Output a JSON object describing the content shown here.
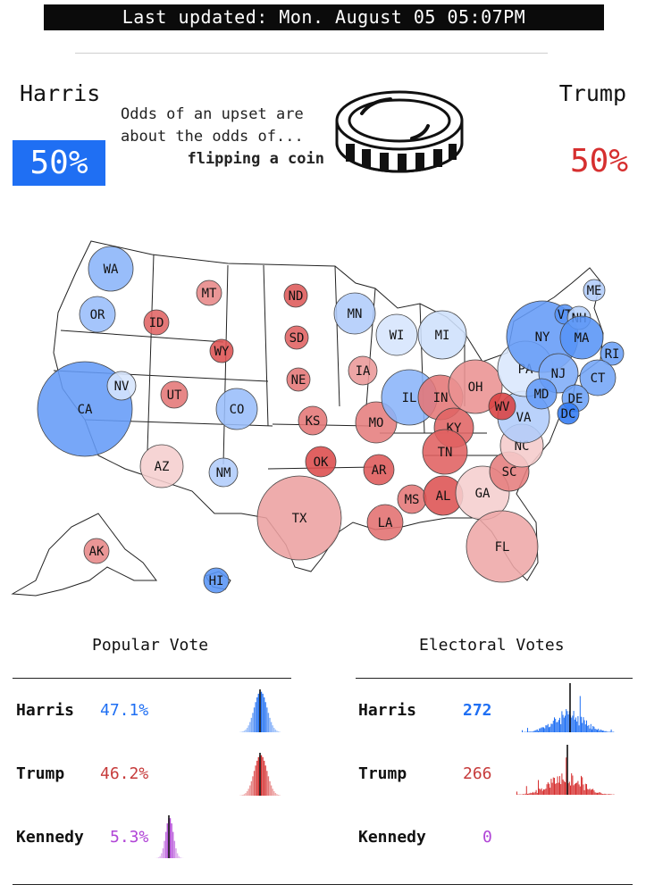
{
  "header": {
    "last_updated": "Last updated: Mon. August 05 05:07PM"
  },
  "topline": {
    "harris_label": "Harris",
    "trump_label": "Trump",
    "harris_pct": "50%",
    "trump_pct": "50%",
    "odds_line1": "Odds of an upset are",
    "odds_line2": "about the odds of...",
    "odds_line3": "flipping a coin",
    "icon": "coin-icon"
  },
  "colors": {
    "harris": "#1f6ff3",
    "trump": "#d62f2f",
    "kennedy": "#b044d6"
  },
  "states": [
    {
      "abbr": "WA",
      "lean": "D",
      "p": 0.72
    },
    {
      "abbr": "OR",
      "lean": "D",
      "p": 0.68
    },
    {
      "abbr": "CA",
      "lean": "D",
      "p": 0.82
    },
    {
      "abbr": "NV",
      "lean": "D",
      "p": 0.52
    },
    {
      "abbr": "ID",
      "lean": "R",
      "p": 0.85
    },
    {
      "abbr": "MT",
      "lean": "R",
      "p": 0.75
    },
    {
      "abbr": "WY",
      "lean": "R",
      "p": 0.9
    },
    {
      "abbr": "UT",
      "lean": "R",
      "p": 0.8
    },
    {
      "abbr": "AZ",
      "lean": "R",
      "p": 0.55
    },
    {
      "abbr": "CO",
      "lean": "D",
      "p": 0.68
    },
    {
      "abbr": "NM",
      "lean": "D",
      "p": 0.62
    },
    {
      "abbr": "ND",
      "lean": "R",
      "p": 0.88
    },
    {
      "abbr": "SD",
      "lean": "R",
      "p": 0.86
    },
    {
      "abbr": "NE",
      "lean": "R",
      "p": 0.8
    },
    {
      "abbr": "KS",
      "lean": "R",
      "p": 0.8
    },
    {
      "abbr": "OK",
      "lean": "R",
      "p": 0.92
    },
    {
      "abbr": "TX",
      "lean": "R",
      "p": 0.68
    },
    {
      "abbr": "MN",
      "lean": "D",
      "p": 0.62
    },
    {
      "abbr": "IA",
      "lean": "R",
      "p": 0.7
    },
    {
      "abbr": "MO",
      "lean": "R",
      "p": 0.78
    },
    {
      "abbr": "AR",
      "lean": "R",
      "p": 0.88
    },
    {
      "abbr": "LA",
      "lean": "R",
      "p": 0.82
    },
    {
      "abbr": "WI",
      "lean": "D",
      "p": 0.52
    },
    {
      "abbr": "MI",
      "lean": "D",
      "p": 0.54
    },
    {
      "abbr": "IL",
      "lean": "D",
      "p": 0.72
    },
    {
      "abbr": "IN",
      "lean": "R",
      "p": 0.8
    },
    {
      "abbr": "OH",
      "lean": "R",
      "p": 0.72
    },
    {
      "abbr": "KY",
      "lean": "R",
      "p": 0.85
    },
    {
      "abbr": "TN",
      "lean": "R",
      "p": 0.86
    },
    {
      "abbr": "MS",
      "lean": "R",
      "p": 0.8
    },
    {
      "abbr": "AL",
      "lean": "R",
      "p": 0.9
    },
    {
      "abbr": "GA",
      "lean": "R",
      "p": 0.55
    },
    {
      "abbr": "FL",
      "lean": "R",
      "p": 0.66
    },
    {
      "abbr": "SC",
      "lean": "R",
      "p": 0.78
    },
    {
      "abbr": "NC",
      "lean": "R",
      "p": 0.56
    },
    {
      "abbr": "VA",
      "lean": "D",
      "p": 0.62
    },
    {
      "abbr": "WV",
      "lean": "R",
      "p": 0.95
    },
    {
      "abbr": "PA",
      "lean": "D",
      "p": 0.51
    },
    {
      "abbr": "NY",
      "lean": "D",
      "p": 0.82
    },
    {
      "abbr": "VT",
      "lean": "D",
      "p": 0.85
    },
    {
      "abbr": "NH",
      "lean": "D",
      "p": 0.6
    },
    {
      "abbr": "ME",
      "lean": "D",
      "p": 0.62
    },
    {
      "abbr": "MA",
      "lean": "D",
      "p": 0.85
    },
    {
      "abbr": "RI",
      "lean": "D",
      "p": 0.8
    },
    {
      "abbr": "CT",
      "lean": "D",
      "p": 0.78
    },
    {
      "abbr": "NJ",
      "lean": "D",
      "p": 0.75
    },
    {
      "abbr": "DE",
      "lean": "D",
      "p": 0.8
    },
    {
      "abbr": "MD",
      "lean": "D",
      "p": 0.82
    },
    {
      "abbr": "DC",
      "lean": "D",
      "p": 0.95
    },
    {
      "abbr": "AK",
      "lean": "R",
      "p": 0.75
    },
    {
      "abbr": "HI",
      "lean": "D",
      "p": 0.85
    }
  ],
  "popular_vote": {
    "title": "Popular Vote",
    "rows": [
      {
        "name": "Harris",
        "value": "47.1%"
      },
      {
        "name": "Trump",
        "value": "46.2%"
      },
      {
        "name": "Kennedy",
        "value": "5.3%"
      }
    ]
  },
  "electoral_votes": {
    "title": "Electoral Votes",
    "rows": [
      {
        "name": "Harris",
        "value": "272"
      },
      {
        "name": "Trump",
        "value": "266"
      },
      {
        "name": "Kennedy",
        "value": "0"
      }
    ]
  }
}
